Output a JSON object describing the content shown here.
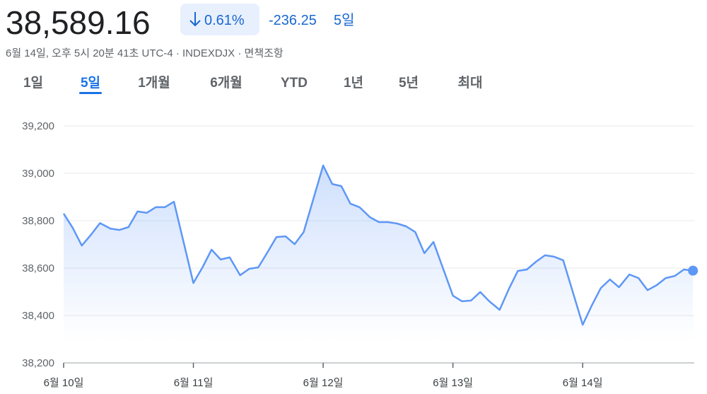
{
  "header": {
    "price": "38,589.16",
    "change_percent": "0.61%",
    "change": "-236.25",
    "period": "5일",
    "subtitle": "6월 14일, 오후 5시 20분 41초 UTC-4 · INDEXDJX · 면책조항"
  },
  "tabs": {
    "items": [
      "1일",
      "5일",
      "1개월",
      "6개월",
      "YTD",
      "1년",
      "5년",
      "최대"
    ],
    "selected": 1
  },
  "chart_data": {
    "type": "line",
    "x": [
      0,
      0.07,
      0.14,
      0.21,
      0.28,
      0.36,
      0.43,
      0.5,
      0.57,
      0.64,
      0.71,
      0.78,
      0.85,
      1,
      1.07,
      1.14,
      1.21,
      1.28,
      1.36,
      1.43,
      1.5,
      1.57,
      1.64,
      1.71,
      1.78,
      1.85,
      2,
      2.07,
      2.14,
      2.21,
      2.28,
      2.36,
      2.43,
      2.5,
      2.57,
      2.64,
      2.71,
      2.78,
      2.85,
      3,
      3.07,
      3.14,
      3.21,
      3.28,
      3.36,
      3.43,
      3.5,
      3.57,
      3.64,
      3.71,
      3.78,
      3.85,
      4,
      4.07,
      4.14,
      4.21,
      4.28,
      4.36,
      4.43,
      4.5,
      4.57,
      4.64,
      4.71,
      4.78,
      4.85
    ],
    "series": [
      {
        "color": "#5e97f6",
        "values": [
          38830,
          38770,
          38695,
          38740,
          38790,
          38767,
          38761,
          38773,
          38839,
          38833,
          38857,
          38857,
          38880,
          38537,
          38603,
          38678,
          38636,
          38645,
          38570,
          38597,
          38603,
          38666,
          38731,
          38734,
          38701,
          38752,
          39033,
          38955,
          38946,
          38872,
          38857,
          38815,
          38794,
          38794,
          38788,
          38776,
          38752,
          38663,
          38710,
          38484,
          38460,
          38463,
          38499,
          38460,
          38424,
          38510,
          38588,
          38594,
          38627,
          38654,
          38648,
          38633,
          38361,
          38442,
          38516,
          38552,
          38519,
          38573,
          38558,
          38507,
          38528,
          38558,
          38567,
          38594,
          38589.16
        ]
      }
    ],
    "xlim": [
      0,
      4.86
    ],
    "xticks": [
      {
        "value": 0,
        "label": "6월 10일"
      },
      {
        "value": 1,
        "label": "6월 11일"
      },
      {
        "value": 2,
        "label": "6월 12일"
      },
      {
        "value": 3,
        "label": "6월 13일"
      },
      {
        "value": 4,
        "label": "6월 14일"
      }
    ],
    "ylim": [
      38200,
      39200
    ],
    "yticks": [
      {
        "value": 38200,
        "label": "38,200"
      },
      {
        "value": 38400,
        "label": "38,400"
      },
      {
        "value": 38600,
        "label": "38,600"
      },
      {
        "value": 38800,
        "label": "38,800"
      },
      {
        "value": 39000,
        "label": "39,000"
      },
      {
        "value": 39200,
        "label": "39,200"
      }
    ],
    "grid": true
  }
}
